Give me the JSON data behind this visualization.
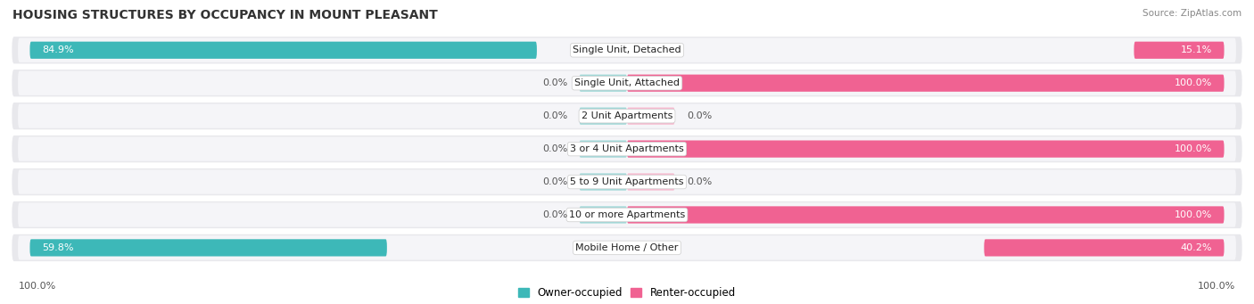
{
  "title": "HOUSING STRUCTURES BY OCCUPANCY IN MOUNT PLEASANT",
  "source": "Source: ZipAtlas.com",
  "categories": [
    "Single Unit, Detached",
    "Single Unit, Attached",
    "2 Unit Apartments",
    "3 or 4 Unit Apartments",
    "5 to 9 Unit Apartments",
    "10 or more Apartments",
    "Mobile Home / Other"
  ],
  "owner_pct": [
    84.9,
    0.0,
    0.0,
    0.0,
    0.0,
    0.0,
    59.8
  ],
  "renter_pct": [
    15.1,
    100.0,
    0.0,
    100.0,
    0.0,
    100.0,
    40.2
  ],
  "owner_color": "#3db8b8",
  "renter_color": "#f06292",
  "owner_stub_color": "#a0d8d8",
  "renter_stub_color": "#f8bbd0",
  "bg_color": "#e8e8ec",
  "bg_light_color": "#f5f5f8",
  "title_fontsize": 10,
  "label_fontsize": 8,
  "cat_fontsize": 8,
  "legend_fontsize": 8.5,
  "source_fontsize": 7.5
}
